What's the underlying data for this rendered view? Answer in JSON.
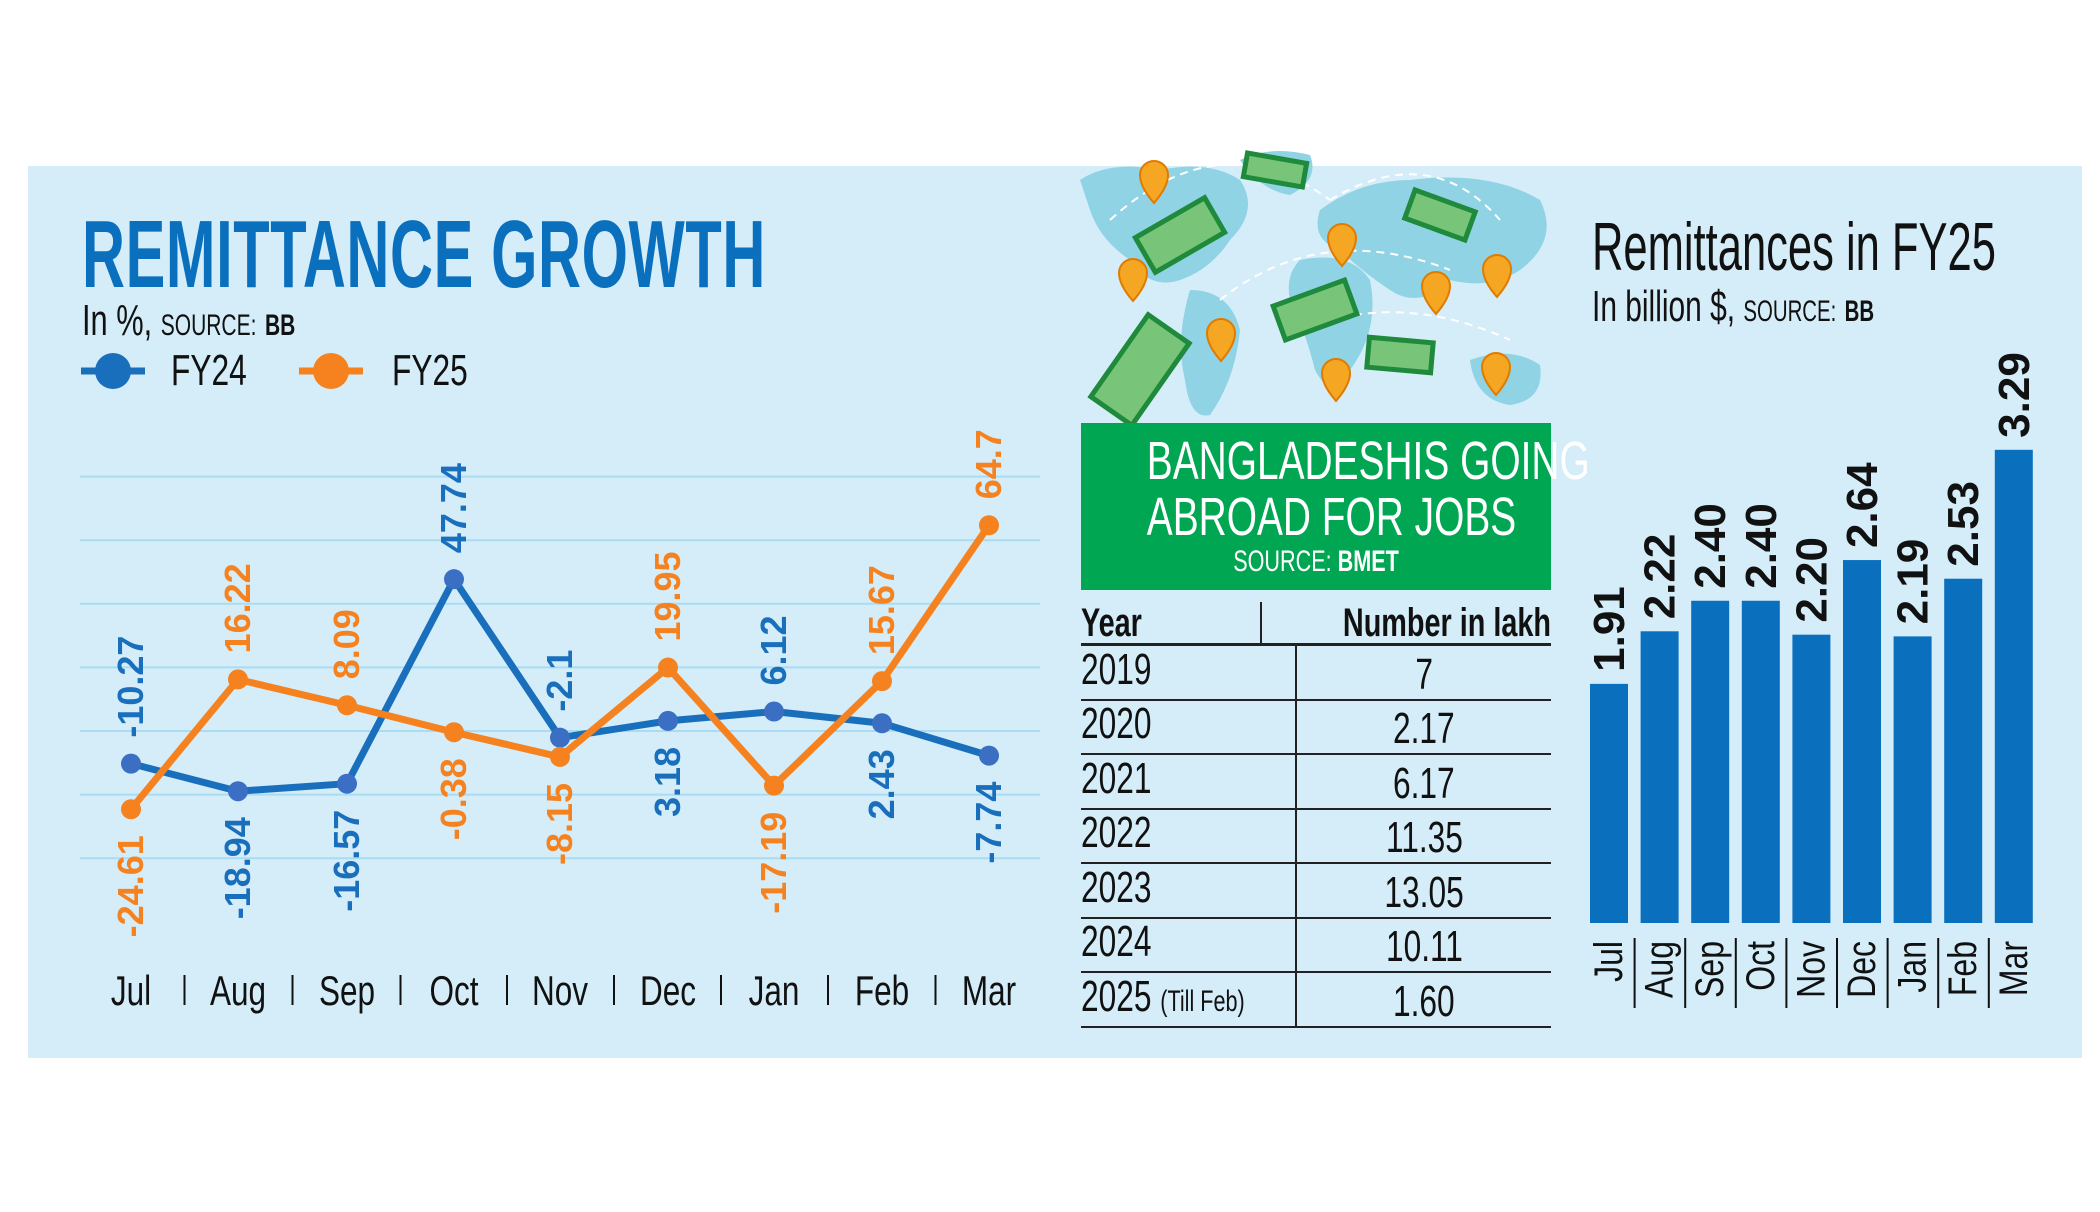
{
  "left": {
    "title": "REMITTANCE GROWTH",
    "unit": "In %,",
    "source_label": "SOURCE:",
    "source": "BB",
    "legend": [
      "FY24",
      "FY25"
    ]
  },
  "middle": {
    "title_line1": "BANGLADESHIS GOING",
    "title_line2": "ABROAD FOR JOBS",
    "source_label": "SOURCE:",
    "source": "BMET",
    "table": {
      "headers": [
        "Year",
        "Number in lakh"
      ],
      "rows": [
        {
          "year": "2019",
          "note": "",
          "value": "7"
        },
        {
          "year": "2020",
          "note": "",
          "value": "2.17"
        },
        {
          "year": "2021",
          "note": "",
          "value": "6.17"
        },
        {
          "year": "2022",
          "note": "",
          "value": "11.35"
        },
        {
          "year": "2023",
          "note": "",
          "value": "13.05"
        },
        {
          "year": "2024",
          "note": "",
          "value": "10.11"
        },
        {
          "year": "2025",
          "note": "(Till Feb)",
          "value": "1.60"
        }
      ]
    },
    "illustration": "world-map-with-money-and-pins"
  },
  "right": {
    "title": "Remittances in FY25",
    "unit": "In billion $,",
    "source_label": "SOURCE:",
    "source": "BB"
  },
  "colors": {
    "fy24": "#1a6fbc",
    "fy25": "#f5821f",
    "bars": "#0a6fbd",
    "panel": "#d4edf9",
    "green": "#00a651"
  },
  "chart_data": [
    {
      "type": "line",
      "title": "REMITTANCE GROWTH",
      "ylabel": "In %",
      "categories": [
        "Jul",
        "Aug",
        "Sep",
        "Oct",
        "Nov",
        "Dec",
        "Jan",
        "Feb",
        "Mar"
      ],
      "series": [
        {
          "name": "FY24",
          "values": [
            -10.27,
            -18.94,
            -16.57,
            47.74,
            -2.1,
            3.18,
            6.12,
            2.43,
            -7.74
          ],
          "labels": [
            "-10.27",
            "-18.94",
            "-16.57",
            "47.74",
            "-2.1",
            "3.18",
            "6.12",
            "2.43",
            "-7.74"
          ]
        },
        {
          "name": "FY25",
          "values": [
            -24.61,
            16.22,
            8.09,
            -0.38,
            -8.15,
            19.95,
            -17.19,
            15.67,
            64.7
          ],
          "labels": [
            "-24.61",
            "16.22",
            "8.09",
            "-0.38",
            "-8.15",
            "19.95",
            "-17.19",
            "15.67",
            "64.7"
          ]
        }
      ],
      "ylim": [
        -40,
        80
      ],
      "grid": true,
      "legend": "top-left"
    },
    {
      "type": "bar",
      "title": "Remittances in FY25",
      "ylabel": "In billion $",
      "categories": [
        "Jul",
        "Aug",
        "Sep",
        "Oct",
        "Nov",
        "Dec",
        "Jan",
        "Feb",
        "Mar"
      ],
      "values": [
        1.91,
        2.22,
        2.4,
        2.4,
        2.2,
        2.64,
        2.19,
        2.53,
        3.29
      ],
      "labels": [
        "1.91",
        "2.22",
        "2.40",
        "2.40",
        "2.20",
        "2.64",
        "2.19",
        "2.53",
        "3.29"
      ],
      "grid": false
    }
  ]
}
